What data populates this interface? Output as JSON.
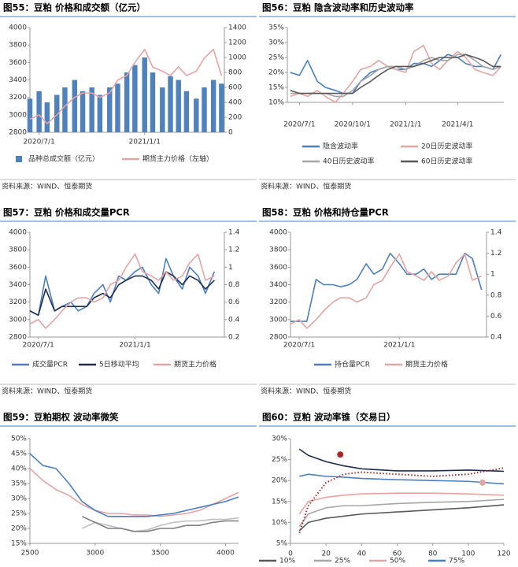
{
  "chart_data": [
    {
      "type": "bar",
      "title": "图55：豆粕 价格和成交额（亿元）",
      "source": "资料来源：WIND、恒泰期货",
      "x": [
        "2020/6/15",
        "2020/7/1",
        "2020/7/15",
        "2020/8/1",
        "2020/8/15",
        "2020/9/1",
        "2020/9/15",
        "2020/10/1",
        "2020/10/15",
        "2020/11/1",
        "2020/11/15",
        "2020/12/1",
        "2020/12/15",
        "2021/1/1",
        "2021/1/15",
        "2021/2/1",
        "2021/2/15",
        "2021/3/1",
        "2021/3/15",
        "2021/4/1",
        "2021/4/15",
        "2021/5/1",
        "2021/5/15"
      ],
      "xlim": [
        "2020/6/15",
        "2021/5/20"
      ],
      "xticks": [
        "2020/7/1",
        "2021/1/1"
      ],
      "ylim": [
        2800,
        4000
      ],
      "yticks": [
        2800,
        3000,
        3200,
        3400,
        3600,
        3800,
        4000
      ],
      "y2lim": [
        0,
        1400
      ],
      "y2ticks": [
        0,
        200,
        400,
        600,
        800,
        1000,
        1200,
        1400
      ],
      "grid": false,
      "series": [
        {
          "name": "品种总成交额（亿元）",
          "type": "bar",
          "axis": "y2",
          "color": "#4f81bd",
          "values": [
            450,
            550,
            400,
            500,
            600,
            700,
            550,
            600,
            500,
            600,
            650,
            800,
            900,
            1000,
            800,
            600,
            750,
            700,
            550,
            450,
            600,
            700,
            650
          ]
        },
        {
          "name": "期货主力价格（左轴）",
          "type": "line",
          "color": "#e6a3a3",
          "values": [
            2950,
            3000,
            2900,
            3000,
            3100,
            3200,
            3250,
            3250,
            3200,
            3250,
            3400,
            3450,
            3600,
            3750,
            3550,
            3500,
            3450,
            3550,
            3450,
            3500,
            3650,
            3750,
            3450
          ]
        }
      ]
    },
    {
      "type": "line",
      "title": "图56：豆粕 隐含波动率和历史波动率",
      "source": "资料来源：WIND、恒泰期货",
      "x": [
        "2020/6/15",
        "2020/7/1",
        "2020/7/15",
        "2020/8/1",
        "2020/8/15",
        "2020/9/1",
        "2020/9/15",
        "2020/10/1",
        "2020/10/15",
        "2020/11/1",
        "2020/11/15",
        "2020/12/1",
        "2020/12/15",
        "2021/1/1",
        "2021/1/15",
        "2021/2/1",
        "2021/2/15",
        "2021/3/1",
        "2021/3/15",
        "2021/4/1",
        "2021/4/15",
        "2021/5/1",
        "2021/5/15",
        "2021/6/1",
        "2021/6/15"
      ],
      "xlim": [
        "2020/6/10",
        "2021/6/20"
      ],
      "xticks": [
        "2020/7/1",
        "2020/10/1",
        "2021/1/1",
        "2021/4/1"
      ],
      "ylim": [
        10,
        35
      ],
      "yticks": [
        {
          "value": 10,
          "label": "10%"
        },
        {
          "value": 15,
          "label": "15%"
        },
        {
          "value": 20,
          "label": "20%"
        },
        {
          "value": 25,
          "label": "25%"
        },
        {
          "value": 30,
          "label": "30%"
        },
        {
          "value": 35,
          "label": "35%"
        }
      ],
      "grid": false,
      "series": [
        {
          "name": "隐含波动率",
          "color": "#4a7fc1",
          "values": [
            20,
            19,
            24,
            17,
            15,
            14,
            13,
            13,
            17,
            20,
            21,
            22,
            21,
            21,
            23,
            23,
            22,
            24,
            26,
            25,
            23,
            22,
            22,
            21,
            26
          ]
        },
        {
          "name": "20日历史波动率",
          "color": "#e6a3a3",
          "values": [
            12,
            13,
            12,
            14,
            12,
            10,
            13,
            17,
            21,
            22,
            24,
            22,
            21,
            20,
            27,
            29,
            23,
            21,
            24,
            27,
            25,
            21,
            20,
            19,
            22
          ]
        },
        {
          "name": "40日历史波动率",
          "color": "#a6a6a6",
          "values": [
            13,
            13,
            13,
            13,
            13,
            12,
            12,
            14,
            17,
            19,
            21,
            22,
            22,
            21,
            22,
            24,
            25,
            24,
            24,
            26,
            26,
            24,
            22,
            21,
            22
          ]
        },
        {
          "name": "60日历史波动率",
          "color": "#595959",
          "values": [
            14,
            13,
            13,
            13,
            13,
            13,
            13,
            13,
            15,
            17,
            19,
            21,
            22,
            22,
            22,
            23,
            24,
            25,
            25,
            25,
            26,
            25,
            24,
            22,
            22
          ]
        }
      ]
    },
    {
      "type": "line",
      "title": "图57：豆粕 价格和成交量PCR",
      "source": "资料来源：WIND、恒泰期货",
      "x": [
        "2020/6/15",
        "2020/7/1",
        "2020/7/15",
        "2020/8/1",
        "2020/8/15",
        "2020/9/1",
        "2020/9/15",
        "2020/10/1",
        "2020/10/15",
        "2020/11/1",
        "2020/11/15",
        "2020/12/1",
        "2020/12/15",
        "2021/1/1",
        "2021/1/15",
        "2021/2/1",
        "2021/2/15",
        "2021/3/1",
        "2021/3/15",
        "2021/4/1",
        "2021/4/15",
        "2021/5/1",
        "2021/5/15",
        "2021/6/1"
      ],
      "xlim": [
        "2020/6/15",
        "2021/6/20"
      ],
      "xticks": [
        "2020/7/1",
        "2021/1/1"
      ],
      "ylim": [
        2800,
        4000
      ],
      "yticks": [
        2800,
        3000,
        3200,
        3400,
        3600,
        3800,
        4000
      ],
      "y2lim": [
        0.2,
        1.4
      ],
      "y2ticks": [
        0.2,
        0.4,
        0.6,
        0.8,
        1,
        1.2,
        1.4
      ],
      "grid": false,
      "series": [
        {
          "name": "成交量PCR",
          "axis": "y2",
          "color": "#4a7fc1",
          "values": [
            0.5,
            0.45,
            0.9,
            0.5,
            0.55,
            0.6,
            0.5,
            0.55,
            0.7,
            0.8,
            0.6,
            0.9,
            0.85,
            0.95,
            1.0,
            0.8,
            0.7,
            1.1,
            0.9,
            0.75,
            1.0,
            0.9,
            0.7,
            0.95
          ]
        },
        {
          "name": "5日移动平均",
          "axis": "y2",
          "color": "#1f2d4f",
          "values": [
            0.5,
            0.45,
            0.75,
            0.5,
            0.55,
            0.55,
            0.55,
            0.55,
            0.65,
            0.7,
            0.65,
            0.8,
            0.85,
            0.9,
            0.9,
            0.85,
            0.75,
            0.95,
            0.9,
            0.8,
            0.9,
            0.85,
            0.75,
            0.85
          ]
        },
        {
          "name": "期货主力价格",
          "color": "#e6a3a3",
          "values": [
            2950,
            3000,
            2900,
            3000,
            3100,
            3200,
            3250,
            3250,
            3200,
            3250,
            3400,
            3450,
            3600,
            3750,
            3550,
            3500,
            3450,
            3550,
            3450,
            3500,
            3650,
            3750,
            3450,
            3500
          ]
        }
      ]
    },
    {
      "type": "line",
      "title": "图58：豆粕 价格和持仓量PCR",
      "source": "资料来源：WIND、恒泰期货",
      "x": [
        "2020/6/15",
        "2020/7/1",
        "2020/7/15",
        "2020/8/1",
        "2020/8/15",
        "2020/9/1",
        "2020/9/15",
        "2020/10/1",
        "2020/10/15",
        "2020/11/1",
        "2020/11/15",
        "2020/12/1",
        "2020/12/15",
        "2021/1/1",
        "2021/1/15",
        "2021/2/1",
        "2021/2/15",
        "2021/3/1",
        "2021/3/15",
        "2021/4/1",
        "2021/4/15",
        "2021/5/1",
        "2021/5/15",
        "2021/6/1"
      ],
      "xlim": [
        "2020/6/15",
        "2021/6/10"
      ],
      "xticks": [
        "2020/7/1",
        "2021/1/1"
      ],
      "ylim": [
        2800,
        4000
      ],
      "yticks": [
        2800,
        3000,
        3200,
        3400,
        3600,
        3800,
        4000
      ],
      "y2lim": [
        0.4,
        1.4
      ],
      "y2ticks": [
        0.4,
        0.6,
        0.8,
        1,
        1.2,
        1.4
      ],
      "grid": false,
      "series": [
        {
          "name": "持仓量PCR",
          "axis": "y2",
          "color": "#4a7fc1",
          "values": [
            0.55,
            0.55,
            0.55,
            0.95,
            0.9,
            0.9,
            0.88,
            0.9,
            0.95,
            1.1,
            1.0,
            1.05,
            1.2,
            1.1,
            1.0,
            1.0,
            1.05,
            0.95,
            1.0,
            1.0,
            1.0,
            1.2,
            1.15,
            0.85
          ]
        },
        {
          "name": "期货主力价格",
          "color": "#e6a3a3",
          "values": [
            2950,
            3000,
            2900,
            3000,
            3100,
            3200,
            3250,
            3250,
            3200,
            3250,
            3400,
            3450,
            3600,
            3750,
            3550,
            3500,
            3450,
            3550,
            3450,
            3500,
            3650,
            3750,
            3450,
            3500
          ]
        }
      ]
    },
    {
      "type": "line",
      "title": "图59：豆粕期权 波动率微笑",
      "x": [
        2500,
        2600,
        2700,
        2800,
        2900,
        3000,
        3100,
        3200,
        3300,
        3400,
        3500,
        3600,
        3700,
        3800,
        3900,
        4000,
        4100
      ],
      "xlim": [
        2500,
        4100
      ],
      "xticks": [
        2500,
        3000,
        3500,
        4000
      ],
      "ylim": [
        15,
        50
      ],
      "yticks": [
        {
          "value": 15,
          "label": "15%"
        },
        {
          "value": 20,
          "label": "20%"
        },
        {
          "value": 25,
          "label": "25%"
        },
        {
          "value": 30,
          "label": "30%"
        },
        {
          "value": 35,
          "label": "35%"
        },
        {
          "value": 40,
          "label": "40%"
        },
        {
          "value": 45,
          "label": "45%"
        },
        {
          "value": 50,
          "label": "50%"
        }
      ],
      "grid": false,
      "series": [
        {
          "color": "#e6a3a3",
          "values": [
            40,
            36,
            33,
            31,
            28,
            26,
            25,
            25,
            24.5,
            24.5,
            24,
            24.5,
            25,
            26,
            28,
            30,
            32
          ]
        },
        {
          "color": "#4a7fc1",
          "values": [
            45,
            41,
            40,
            35,
            29,
            26,
            24,
            24,
            24,
            24,
            24.5,
            25,
            26,
            27,
            28,
            29,
            30.5
          ]
        },
        {
          "color": "#bfbfbf",
          "values": [
            null,
            null,
            null,
            null,
            20,
            22,
            21,
            20,
            19,
            19.5,
            21,
            22,
            22.5,
            22.5,
            23,
            23,
            23.5
          ]
        },
        {
          "color": "#7f7f7f",
          "values": [
            null,
            null,
            null,
            null,
            24,
            22,
            20,
            20,
            19,
            19,
            20,
            20,
            21,
            21,
            22,
            22.5,
            22.5
          ]
        }
      ]
    },
    {
      "type": "line",
      "title": "图60：豆粕 波动率锥（交易日）",
      "x": [
        5,
        10,
        20,
        30,
        40,
        60,
        80,
        100,
        120
      ],
      "xlim": [
        0,
        120
      ],
      "xticks": [
        0,
        20,
        40,
        60,
        80,
        100,
        120
      ],
      "ylim": [
        5,
        30
      ],
      "yticks": [
        {
          "value": 5,
          "label": "5%"
        },
        {
          "value": 10,
          "label": "10%"
        },
        {
          "value": 15,
          "label": "15%"
        },
        {
          "value": 20,
          "label": "20%"
        },
        {
          "value": 25,
          "label": "25%"
        },
        {
          "value": 30,
          "label": "30%"
        }
      ],
      "grid": false,
      "series": [
        {
          "name": "10%",
          "color": "#595959",
          "values": [
            8,
            10,
            11,
            11.5,
            12,
            12.5,
            13,
            13.5,
            14.2
          ]
        },
        {
          "name": "25%",
          "color": "#a6a6a6",
          "values": [
            9,
            12,
            13.5,
            14,
            14,
            14.5,
            14.8,
            15,
            15.5
          ]
        },
        {
          "name": "50%",
          "color": "#e6a3a3",
          "values": [
            12,
            15,
            16,
            16.5,
            16.8,
            17,
            17,
            16.8,
            16.5
          ]
        },
        {
          "name": "75%",
          "color": "#4a7fc1",
          "values": [
            21,
            21.5,
            21,
            20.8,
            20.5,
            20.2,
            20,
            19.8,
            19.2
          ]
        },
        {
          "color": "#1f2d4f",
          "values": [
            27.5,
            26,
            24.5,
            23.5,
            22.8,
            22.3,
            22.3,
            22.5,
            22.2
          ]
        },
        {
          "color": "#a52a2a",
          "style": "dotted",
          "values": [
            7.5,
            14,
            19.5,
            21.5,
            22,
            21.5,
            21,
            21.5,
            23
          ]
        }
      ],
      "points": [
        {
          "x": 28,
          "y": 26.2,
          "color": "#a52a2a"
        },
        {
          "x": 108,
          "y": 19.5,
          "color": "#e6a3a3"
        }
      ]
    }
  ]
}
